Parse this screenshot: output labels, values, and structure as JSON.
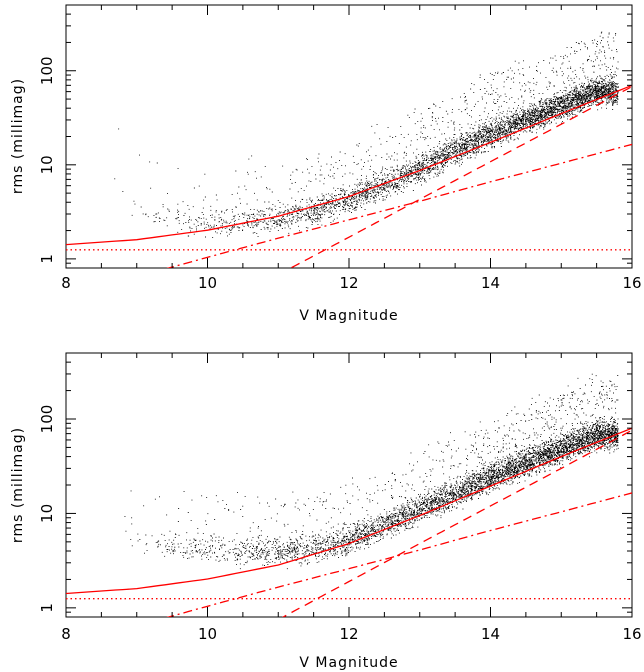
{
  "chart_data": [
    {
      "type": "scatter",
      "title": "",
      "xlabel": "V Magnitude",
      "ylabel": "rms (millimag)",
      "xlim": [
        8,
        16
      ],
      "ylim": [
        0.8,
        500
      ],
      "yscale": "log",
      "xticks": [
        "8",
        "10",
        "12",
        "14",
        "16"
      ],
      "yticks": [
        "1",
        "10",
        "100"
      ],
      "grid": false,
      "legend": "none",
      "series": [
        {
          "style": "scatter",
          "color": "#000000",
          "points_approx": [
            [
              8.7,
              8
            ],
            [
              8.9,
              4
            ],
            [
              9.2,
              3
            ],
            [
              9.6,
              2.6
            ],
            [
              10.0,
              2.4
            ],
            [
              10.5,
              2.4
            ],
            [
              11.0,
              2.7
            ],
            [
              11.5,
              3.2
            ],
            [
              12.0,
              4.2
            ],
            [
              12.5,
              6
            ],
            [
              13.0,
              9
            ],
            [
              13.5,
              14
            ],
            [
              14.0,
              21
            ],
            [
              14.5,
              30
            ],
            [
              15.0,
              42
            ],
            [
              15.5,
              60
            ]
          ]
        },
        {
          "style": "solid",
          "color": "#ff0000",
          "x": [
            8,
            9,
            10,
            11,
            12,
            13,
            14,
            15,
            16
          ],
          "y": [
            1.42,
            1.6,
            2.02,
            2.84,
            4.6,
            8.7,
            17.3,
            35,
            70
          ]
        },
        {
          "style": "dashed",
          "color": "#ff0000",
          "x": [
            11,
            12,
            13,
            14,
            15,
            16
          ],
          "y": [
            0.68,
            1.7,
            4.3,
            10.8,
            27,
            68
          ]
        },
        {
          "style": "dashdot",
          "color": "#ff0000",
          "x": [
            9.4,
            10,
            11,
            12,
            13,
            14,
            15,
            16
          ],
          "y": [
            0.78,
            1.04,
            1.66,
            2.6,
            4.1,
            6.6,
            10.4,
            16.5
          ]
        },
        {
          "style": "dotted",
          "color": "#ff0000",
          "x": [
            8,
            16
          ],
          "y": [
            1.25,
            1.25
          ]
        }
      ]
    },
    {
      "type": "scatter",
      "title": "",
      "xlabel": "V Magnitude",
      "ylabel": "rms (millimag)",
      "xlim": [
        8,
        16
      ],
      "ylim": [
        0.8,
        500
      ],
      "yscale": "log",
      "xticks": [
        "8",
        "10",
        "12",
        "14",
        "16"
      ],
      "yticks": [
        "1",
        "10",
        "100"
      ],
      "grid": false,
      "legend": "none",
      "series": [
        {
          "style": "scatter",
          "color": "#000000",
          "points_approx": [
            [
              8.8,
              8
            ],
            [
              9.0,
              5.5
            ],
            [
              9.3,
              4.5
            ],
            [
              9.7,
              4.2
            ],
            [
              10.0,
              4.2
            ],
            [
              10.5,
              4.0
            ],
            [
              11.0,
              4.0
            ],
            [
              11.5,
              4.3
            ],
            [
              12.0,
              5.2
            ],
            [
              12.5,
              7.5
            ],
            [
              13.0,
              11
            ],
            [
              13.5,
              16
            ],
            [
              14.0,
              24
            ],
            [
              14.5,
              34
            ],
            [
              15.0,
              48
            ],
            [
              15.5,
              68
            ]
          ]
        },
        {
          "style": "solid",
          "color": "#ff0000",
          "x": [
            8,
            9,
            10,
            11,
            12,
            13,
            14,
            15,
            16
          ],
          "y": [
            1.42,
            1.6,
            2.02,
            2.84,
            4.8,
            9.5,
            19.5,
            40,
            80
          ]
        },
        {
          "style": "dashed",
          "color": "#ff0000",
          "x": [
            11,
            12,
            13,
            14,
            15,
            16
          ],
          "y": [
            0.75,
            1.9,
            4.8,
            12,
            30,
            76
          ]
        },
        {
          "style": "dashdot",
          "color": "#ff0000",
          "x": [
            9.4,
            10,
            11,
            12,
            13,
            14,
            15,
            16
          ],
          "y": [
            0.78,
            1.04,
            1.66,
            2.6,
            4.1,
            6.6,
            10.4,
            16.5
          ]
        },
        {
          "style": "dotted",
          "color": "#ff0000",
          "x": [
            8,
            16
          ],
          "y": [
            1.25,
            1.25
          ]
        }
      ]
    }
  ]
}
